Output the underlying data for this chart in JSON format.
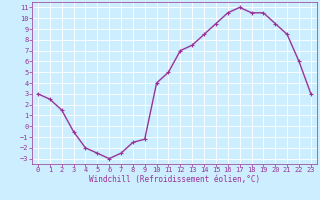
{
  "x": [
    0,
    1,
    2,
    3,
    4,
    5,
    6,
    7,
    8,
    9,
    10,
    11,
    12,
    13,
    14,
    15,
    16,
    17,
    18,
    19,
    20,
    21,
    22,
    23
  ],
  "y": [
    3.0,
    2.5,
    1.5,
    -0.5,
    -2.0,
    -2.5,
    -3.0,
    -2.5,
    -1.5,
    -1.2,
    4.0,
    5.0,
    7.0,
    7.5,
    8.5,
    9.5,
    10.5,
    11.0,
    10.5,
    10.5,
    9.5,
    8.5,
    6.0,
    3.0
  ],
  "line_color": "#993399",
  "marker": "+",
  "bg_color": "#cceeff",
  "grid_color": "#aadddd",
  "xlabel": "Windchill (Refroidissement éolien,°C)",
  "ylim": [
    -3.5,
    11.5
  ],
  "xlim": [
    -0.5,
    23.5
  ],
  "yticks": [
    -3,
    -2,
    -1,
    0,
    1,
    2,
    3,
    4,
    5,
    6,
    7,
    8,
    9,
    10,
    11
  ],
  "xticks": [
    0,
    1,
    2,
    3,
    4,
    5,
    6,
    7,
    8,
    9,
    10,
    11,
    12,
    13,
    14,
    15,
    16,
    17,
    18,
    19,
    20,
    21,
    22,
    23
  ],
  "tick_color": "#993399",
  "label_color": "#993399",
  "linewidth": 1.0,
  "markersize": 3.5,
  "tick_fontsize": 5.0,
  "xlabel_fontsize": 5.5
}
